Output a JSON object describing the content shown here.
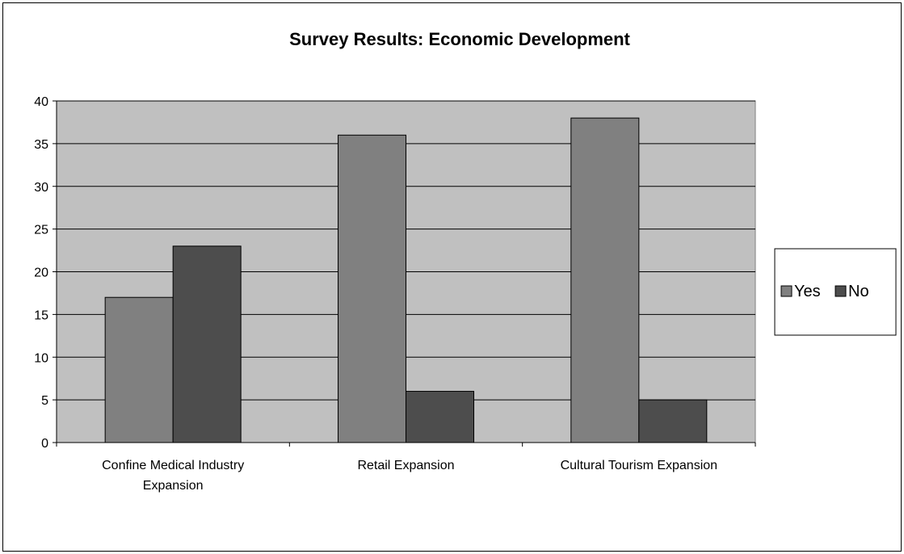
{
  "chart_data": {
    "type": "bar",
    "title": "Survey Results: Economic Development",
    "xlabel": "",
    "ylabel": "",
    "categories": [
      [
        "Confine Medical Industry",
        "Expansion"
      ],
      [
        "Retail Expansion"
      ],
      [
        "Cultural Tourism Expansion"
      ]
    ],
    "series": [
      {
        "name": "Yes",
        "values": [
          17,
          36,
          38
        ],
        "color": "#808080"
      },
      {
        "name": "No",
        "values": [
          23,
          6,
          5
        ],
        "color": "#4d4d4d"
      }
    ],
    "ylim": [
      0,
      40
    ],
    "yticks": [
      0,
      5,
      10,
      15,
      20,
      25,
      30,
      35,
      40
    ],
    "grid": true,
    "plot_background": "#c0c0c0",
    "legend_position": "right"
  }
}
